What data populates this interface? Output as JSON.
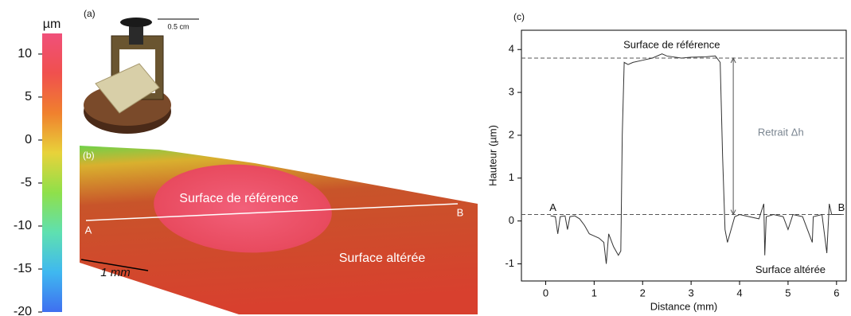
{
  "figure": {
    "panel_a": {
      "label": "(a)",
      "scale_label": "0.5 cm"
    },
    "panel_b": {
      "label": "(b)",
      "reference": "Surface de référence",
      "altered": "Surface altérée",
      "point_a": "A",
      "point_b": "B",
      "scale_label": "1 mm"
    }
  },
  "chart_data": [
    {
      "type": "colorbar",
      "unit": "µm",
      "ylim": [
        -20,
        12.4
      ],
      "yticks": [
        10,
        5,
        0,
        -5,
        -10,
        -15,
        -20
      ],
      "colors": [
        "#3f6ff0",
        "#3fb8f0",
        "#5fe0b0",
        "#8fe04a",
        "#e8d23a",
        "#f0802e",
        "#f0504e",
        "#f0507a"
      ]
    },
    {
      "type": "line",
      "panel_label": "(c)",
      "xlabel": "Distance (mm)",
      "ylabel": "Hauteur (µm)",
      "xlim": [
        -0.5,
        6.2
      ],
      "ylim": [
        -1.4,
        4.45
      ],
      "xticks": [
        0,
        1,
        2,
        3,
        4,
        5,
        6
      ],
      "yticks": [
        -1,
        0,
        1,
        2,
        3,
        4
      ],
      "x": [
        0.1,
        0.2,
        0.25,
        0.3,
        0.4,
        0.45,
        0.5,
        0.6,
        0.7,
        0.8,
        0.9,
        1.0,
        1.1,
        1.2,
        1.25,
        1.3,
        1.4,
        1.5,
        1.55,
        1.58,
        1.62,
        1.7,
        1.8,
        2.0,
        2.2,
        2.4,
        2.5,
        2.8,
        3.0,
        3.3,
        3.5,
        3.6,
        3.65,
        3.7,
        3.75,
        3.8,
        3.9,
        4.0,
        4.2,
        4.4,
        4.5,
        4.52,
        4.55,
        4.7,
        4.9,
        5.0,
        5.1,
        5.3,
        5.5,
        5.52,
        5.7,
        5.8,
        5.85,
        5.9,
        6.1
      ],
      "series": [
        {
          "color": "#333333",
          "values": [
            0.12,
            0.1,
            -0.3,
            0.1,
            0.12,
            -0.2,
            0.1,
            0.12,
            0.05,
            -0.1,
            -0.3,
            -0.35,
            -0.4,
            -0.5,
            -1.0,
            -0.3,
            -0.6,
            -0.8,
            -0.7,
            2.0,
            3.7,
            3.65,
            3.7,
            3.75,
            3.8,
            3.9,
            3.85,
            3.8,
            3.82,
            3.83,
            3.85,
            3.7,
            1.5,
            -0.2,
            -0.5,
            -0.3,
            0.1,
            0.15,
            0.1,
            0.05,
            0.4,
            -0.8,
            0.1,
            0.15,
            0.1,
            -0.2,
            0.15,
            0.1,
            -0.5,
            0.1,
            0.15,
            -0.75,
            0.4,
            0.15,
            0.15
          ]
        }
      ],
      "hlines": [
        3.8,
        0.15
      ],
      "arrow": {
        "x": 3.87,
        "from": 0.15,
        "to": 3.8
      },
      "annotations": [
        {
          "text": "Surface de référence",
          "x": 2.6,
          "y": 4.1
        },
        {
          "text": "Retrait Δh",
          "x": 4.85,
          "y": 2.05,
          "color": "#7a8590"
        },
        {
          "text": "A",
          "x": 0.15,
          "y": 0.3
        },
        {
          "text": "B",
          "x": 6.1,
          "y": 0.3
        },
        {
          "text": "Surface altérée",
          "x": 5.05,
          "y": -1.15
        }
      ]
    }
  ]
}
